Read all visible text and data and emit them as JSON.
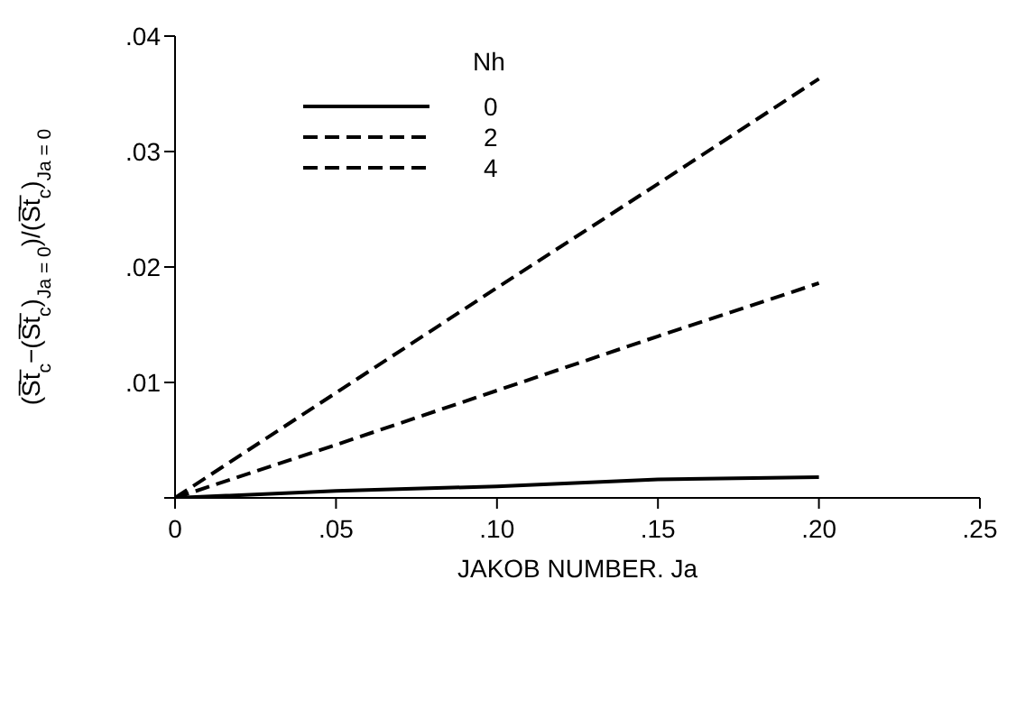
{
  "chart_data": {
    "type": "line",
    "xlabel": "JAKOB NUMBER. Ja",
    "ylabel": "(S̅t̅$_{c}$−(S̅t̅$_{c}$)$_{Ja = 0}$)/(S̅t̅$_{c}$)$_{Ja = 0}$",
    "legend_title": "Nh",
    "legend": "top left",
    "marker": "none",
    "grid": false,
    "x": [
      0,
      0.05,
      0.1,
      0.15,
      0.2
    ],
    "xlim": [
      0,
      0.25
    ],
    "xticks": [
      0,
      {
        "value": 0.05,
        "label": ".05"
      },
      {
        "value": 0.1,
        "label": ".10"
      },
      {
        "value": 0.15,
        "label": ".15"
      },
      {
        "value": 0.2,
        "label": ".20"
      },
      {
        "value": 0.25,
        "label": ".25"
      }
    ],
    "ylim": [
      0,
      0.04
    ],
    "yticks": [
      {
        "value": 0,
        "label": null
      },
      {
        "value": 0.01,
        "label": ".01"
      },
      {
        "value": 0.02,
        "label": ".02"
      },
      {
        "value": 0.03,
        "label": ".03"
      },
      {
        "value": 0.04,
        "label": ".04"
      }
    ],
    "series": [
      {
        "name": "0",
        "color": "#000000",
        "line_style": "solid",
        "values": [
          0,
          0.0006,
          0.001,
          0.0016,
          0.0018
        ]
      },
      {
        "name": "2",
        "color": "#000000",
        "line_style": "dashed",
        "values": [
          0,
          0.0046,
          0.0093,
          0.014,
          0.0186
        ]
      },
      {
        "name": "4",
        "color": "#000000",
        "line_style": "dashed",
        "values": [
          0,
          0.0091,
          0.0182,
          0.0272,
          0.0363
        ]
      }
    ]
  }
}
